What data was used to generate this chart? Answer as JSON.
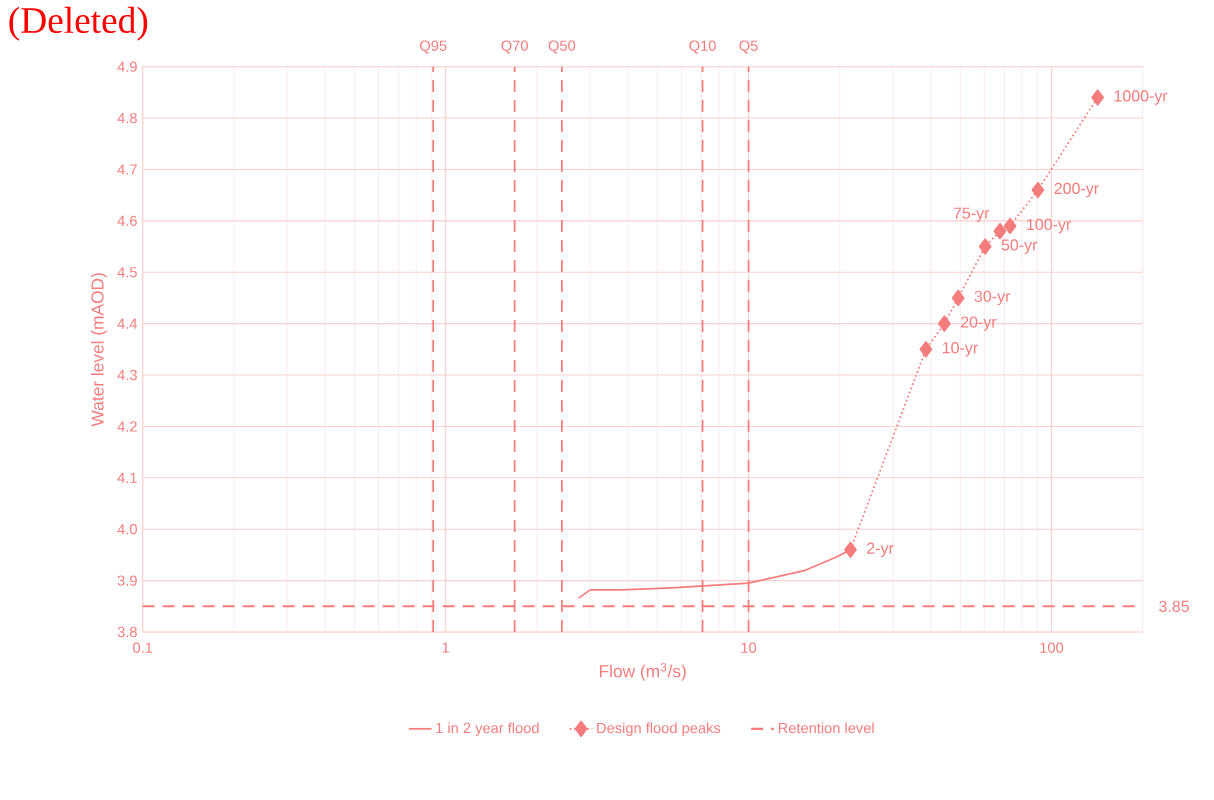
{
  "chart_data": {
    "type": "line",
    "xlabel": "Flow (m$^{3}$/s)",
    "ylabel": "Water level (mAOD)",
    "log": "x",
    "xlim": [
      0.1,
      200
    ],
    "xticks": [
      0.1,
      1,
      10,
      100
    ],
    "ylim": [
      3.8,
      4.9
    ],
    "yticks": [
      3.8,
      3.9,
      {
        "value": 4,
        "label": "4.0"
      },
      4.1,
      4.2,
      4.3,
      4.4,
      4.5,
      4.6,
      4.7,
      4.8,
      4.9
    ],
    "grid": true,
    "legend": "bottom",
    "series": [
      {
        "name": "1 in 2 year flood",
        "color": "#f47c7c",
        "marker": "none",
        "line_style": "solid",
        "x": [
          2.75,
          3.0,
          3.81,
          5.57,
          10,
          15.4,
          19.5,
          21.7
        ],
        "values": [
          3.866,
          3.882,
          3.882,
          3.886,
          3.895,
          3.92,
          3.946,
          3.96
        ]
      },
      {
        "name": "Design flood peaks",
        "color": "#f47c7c",
        "marker": "diamond",
        "line_style": "dotted",
        "x": [
          21.7,
          38.5,
          44.3,
          49.2,
          60.4,
          67.6,
          73,
          90.2,
          142
        ],
        "values": [
          3.96,
          4.35,
          4.4,
          4.45,
          4.55,
          4.58,
          4.59,
          4.66,
          4.84
        ]
      },
      {
        "name": "Retention level",
        "color": "#f47c7c",
        "marker": "none",
        "line_style": "dashed",
        "x": [
          0.1,
          200
        ],
        "values": [
          3.85,
          3.85
        ]
      }
    ],
    "ref_lines": [
      {
        "axis": "x",
        "value": 0.91,
        "label": "Q95",
        "color": "#f47c7c",
        "line_style": "dashed"
      },
      {
        "axis": "x",
        "value": 1.69,
        "label": "Q70",
        "color": "#f47c7c",
        "line_style": "dashed"
      },
      {
        "axis": "x",
        "value": 2.42,
        "label": "Q50",
        "color": "#f47c7c",
        "line_style": "dashed"
      },
      {
        "axis": "x",
        "value": 7.05,
        "label": "Q10",
        "color": "#f47c7c",
        "line_style": "dashed"
      },
      {
        "axis": "x",
        "value": 10,
        "label": "Q5",
        "color": "#f47c7c",
        "line_style": "dashed"
      }
    ],
    "annotations": [
      "(Deleted)",
      {
        "text": "2-yr",
        "x": 21.7,
        "y": 3.96
      },
      {
        "text": "10-yr",
        "x": 38.5,
        "y": 4.35
      },
      {
        "text": "20-yr",
        "x": 44.3,
        "y": 4.4
      },
      {
        "text": "30-yr",
        "x": 49.2,
        "y": 4.45
      },
      {
        "text": "50-yr",
        "x": 60.4,
        "y": 4.55
      },
      {
        "text": "75-yr",
        "x": 67.6,
        "y": 4.58
      },
      {
        "text": "100-yr",
        "x": 73,
        "y": 4.59
      },
      {
        "text": "200-yr",
        "x": 90.2,
        "y": 4.66
      },
      {
        "text": "1000-yr",
        "x": 142,
        "y": 4.84
      },
      {
        "text": "3.85",
        "x": 200,
        "y": 3.85
      }
    ]
  }
}
